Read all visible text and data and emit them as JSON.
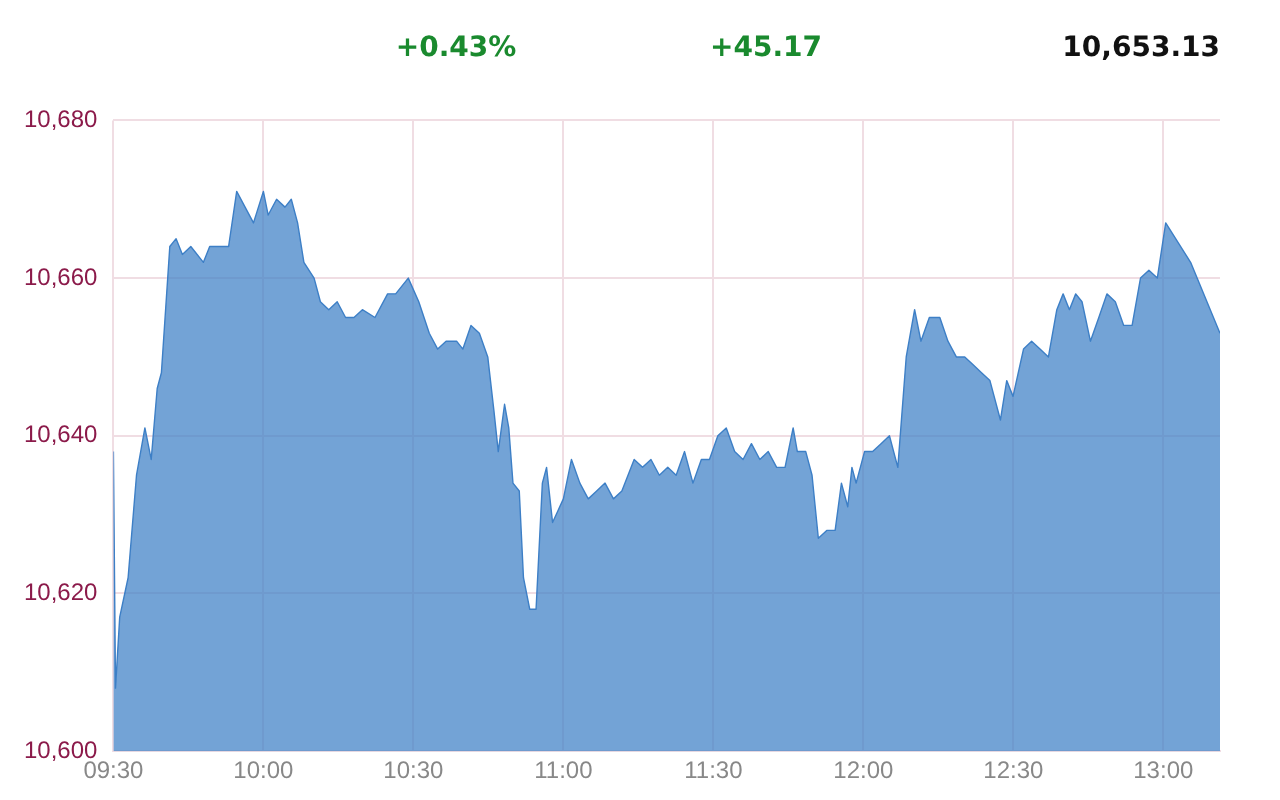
{
  "chart_data": {
    "type": "area",
    "annotations": [
      "+0.43%",
      "+45.17",
      "10,653.13"
    ],
    "x": [
      9.5,
      9.507,
      9.521,
      9.549,
      9.577,
      9.605,
      9.626,
      9.646,
      9.66,
      9.688,
      9.709,
      9.73,
      9.758,
      9.8,
      9.821,
      9.884,
      9.911,
      9.939,
      9.967,
      10.0,
      10.016,
      10.044,
      10.072,
      10.093,
      10.114,
      10.135,
      10.169,
      10.19,
      10.218,
      10.246,
      10.274,
      10.302,
      10.33,
      10.372,
      10.414,
      10.441,
      10.483,
      10.518,
      10.553,
      10.581,
      10.609,
      10.644,
      10.665,
      10.692,
      10.72,
      10.748,
      10.769,
      10.783,
      10.804,
      10.818,
      10.832,
      10.853,
      10.867,
      10.888,
      10.909,
      10.93,
      10.944,
      10.964,
      11.0,
      11.027,
      11.055,
      11.083,
      11.111,
      11.139,
      11.167,
      11.195,
      11.236,
      11.264,
      11.292,
      11.32,
      11.348,
      11.376,
      11.404,
      11.432,
      11.46,
      11.487,
      11.515,
      11.543,
      11.571,
      11.599,
      11.627,
      11.655,
      11.683,
      11.711,
      11.739,
      11.766,
      11.78,
      11.808,
      11.829,
      11.85,
      11.878,
      11.906,
      11.927,
      11.948,
      11.962,
      11.976,
      12.004,
      12.031,
      12.059,
      12.087,
      12.115,
      12.143,
      12.171,
      12.192,
      12.22,
      12.255,
      12.282,
      12.31,
      12.338,
      12.366,
      12.394,
      12.422,
      12.457,
      12.478,
      12.499,
      12.534,
      12.561,
      12.589,
      12.617,
      12.645,
      12.666,
      12.687,
      12.708,
      12.729,
      12.757,
      12.785,
      12.812,
      12.84,
      12.868,
      12.896,
      12.924,
      12.952,
      12.98,
      13.008,
      13.091,
      13.189
    ],
    "series": [
      {
        "color": "#3d7fc6",
        "values": [
          10638,
          10608,
          10617,
          10622,
          10635,
          10641,
          10637,
          10646,
          10648,
          10664,
          10665,
          10663,
          10664,
          10662,
          10664,
          10664,
          10671,
          10669,
          10667,
          10671,
          10668,
          10670,
          10669,
          10670,
          10667,
          10662,
          10660,
          10657,
          10656,
          10657,
          10655,
          10655,
          10656,
          10655,
          10658,
          10658,
          10660,
          10657,
          10653,
          10651,
          10652,
          10652,
          10651,
          10654,
          10653,
          10650,
          10643,
          10638,
          10644,
          10641,
          10634,
          10633,
          10622,
          10618,
          10618,
          10634,
          10636,
          10629,
          10632,
          10637,
          10634,
          10632,
          10633,
          10634,
          10632,
          10633,
          10637,
          10636,
          10637,
          10635,
          10636,
          10635,
          10638,
          10634,
          10637,
          10637,
          10640,
          10641,
          10638,
          10637,
          10639,
          10637,
          10638,
          10636,
          10636,
          10641,
          10638,
          10638,
          10635,
          10627,
          10628,
          10628,
          10634,
          10631,
          10636,
          10634,
          10638,
          10638,
          10639,
          10640,
          10636,
          10650,
          10656,
          10652,
          10655,
          10655,
          10652,
          10650,
          10650,
          10649,
          10648,
          10647,
          10642,
          10647,
          10645,
          10651,
          10652,
          10651,
          10650,
          10656,
          10658,
          10656,
          10658,
          10657,
          10652,
          10655,
          10658,
          10657,
          10654,
          10654,
          10660,
          10661,
          10660,
          10667,
          10662,
          10653
        ]
      }
    ],
    "xlim": [
      9.5,
      13.189
    ],
    "xticks": [
      {
        "value": 9.5,
        "label": "09:30"
      },
      {
        "value": 10,
        "label": "10:00"
      },
      {
        "value": 10.5,
        "label": "10:30"
      },
      {
        "value": 11,
        "label": "11:00"
      },
      {
        "value": 11.5,
        "label": "11:30"
      },
      {
        "value": 12,
        "label": "12:00"
      },
      {
        "value": 12.5,
        "label": "12:30"
      },
      {
        "value": 13,
        "label": "13:00"
      }
    ],
    "ylim": [
      10600,
      10680
    ],
    "yticks": [
      {
        "value": 10600,
        "label": "10,600"
      },
      {
        "value": 10620,
        "label": "10,620"
      },
      {
        "value": 10640,
        "label": "10,640"
      },
      {
        "value": 10660,
        "label": "10,660"
      },
      {
        "value": 10680,
        "label": "10,680"
      }
    ],
    "grid": true,
    "marker": "none"
  }
}
